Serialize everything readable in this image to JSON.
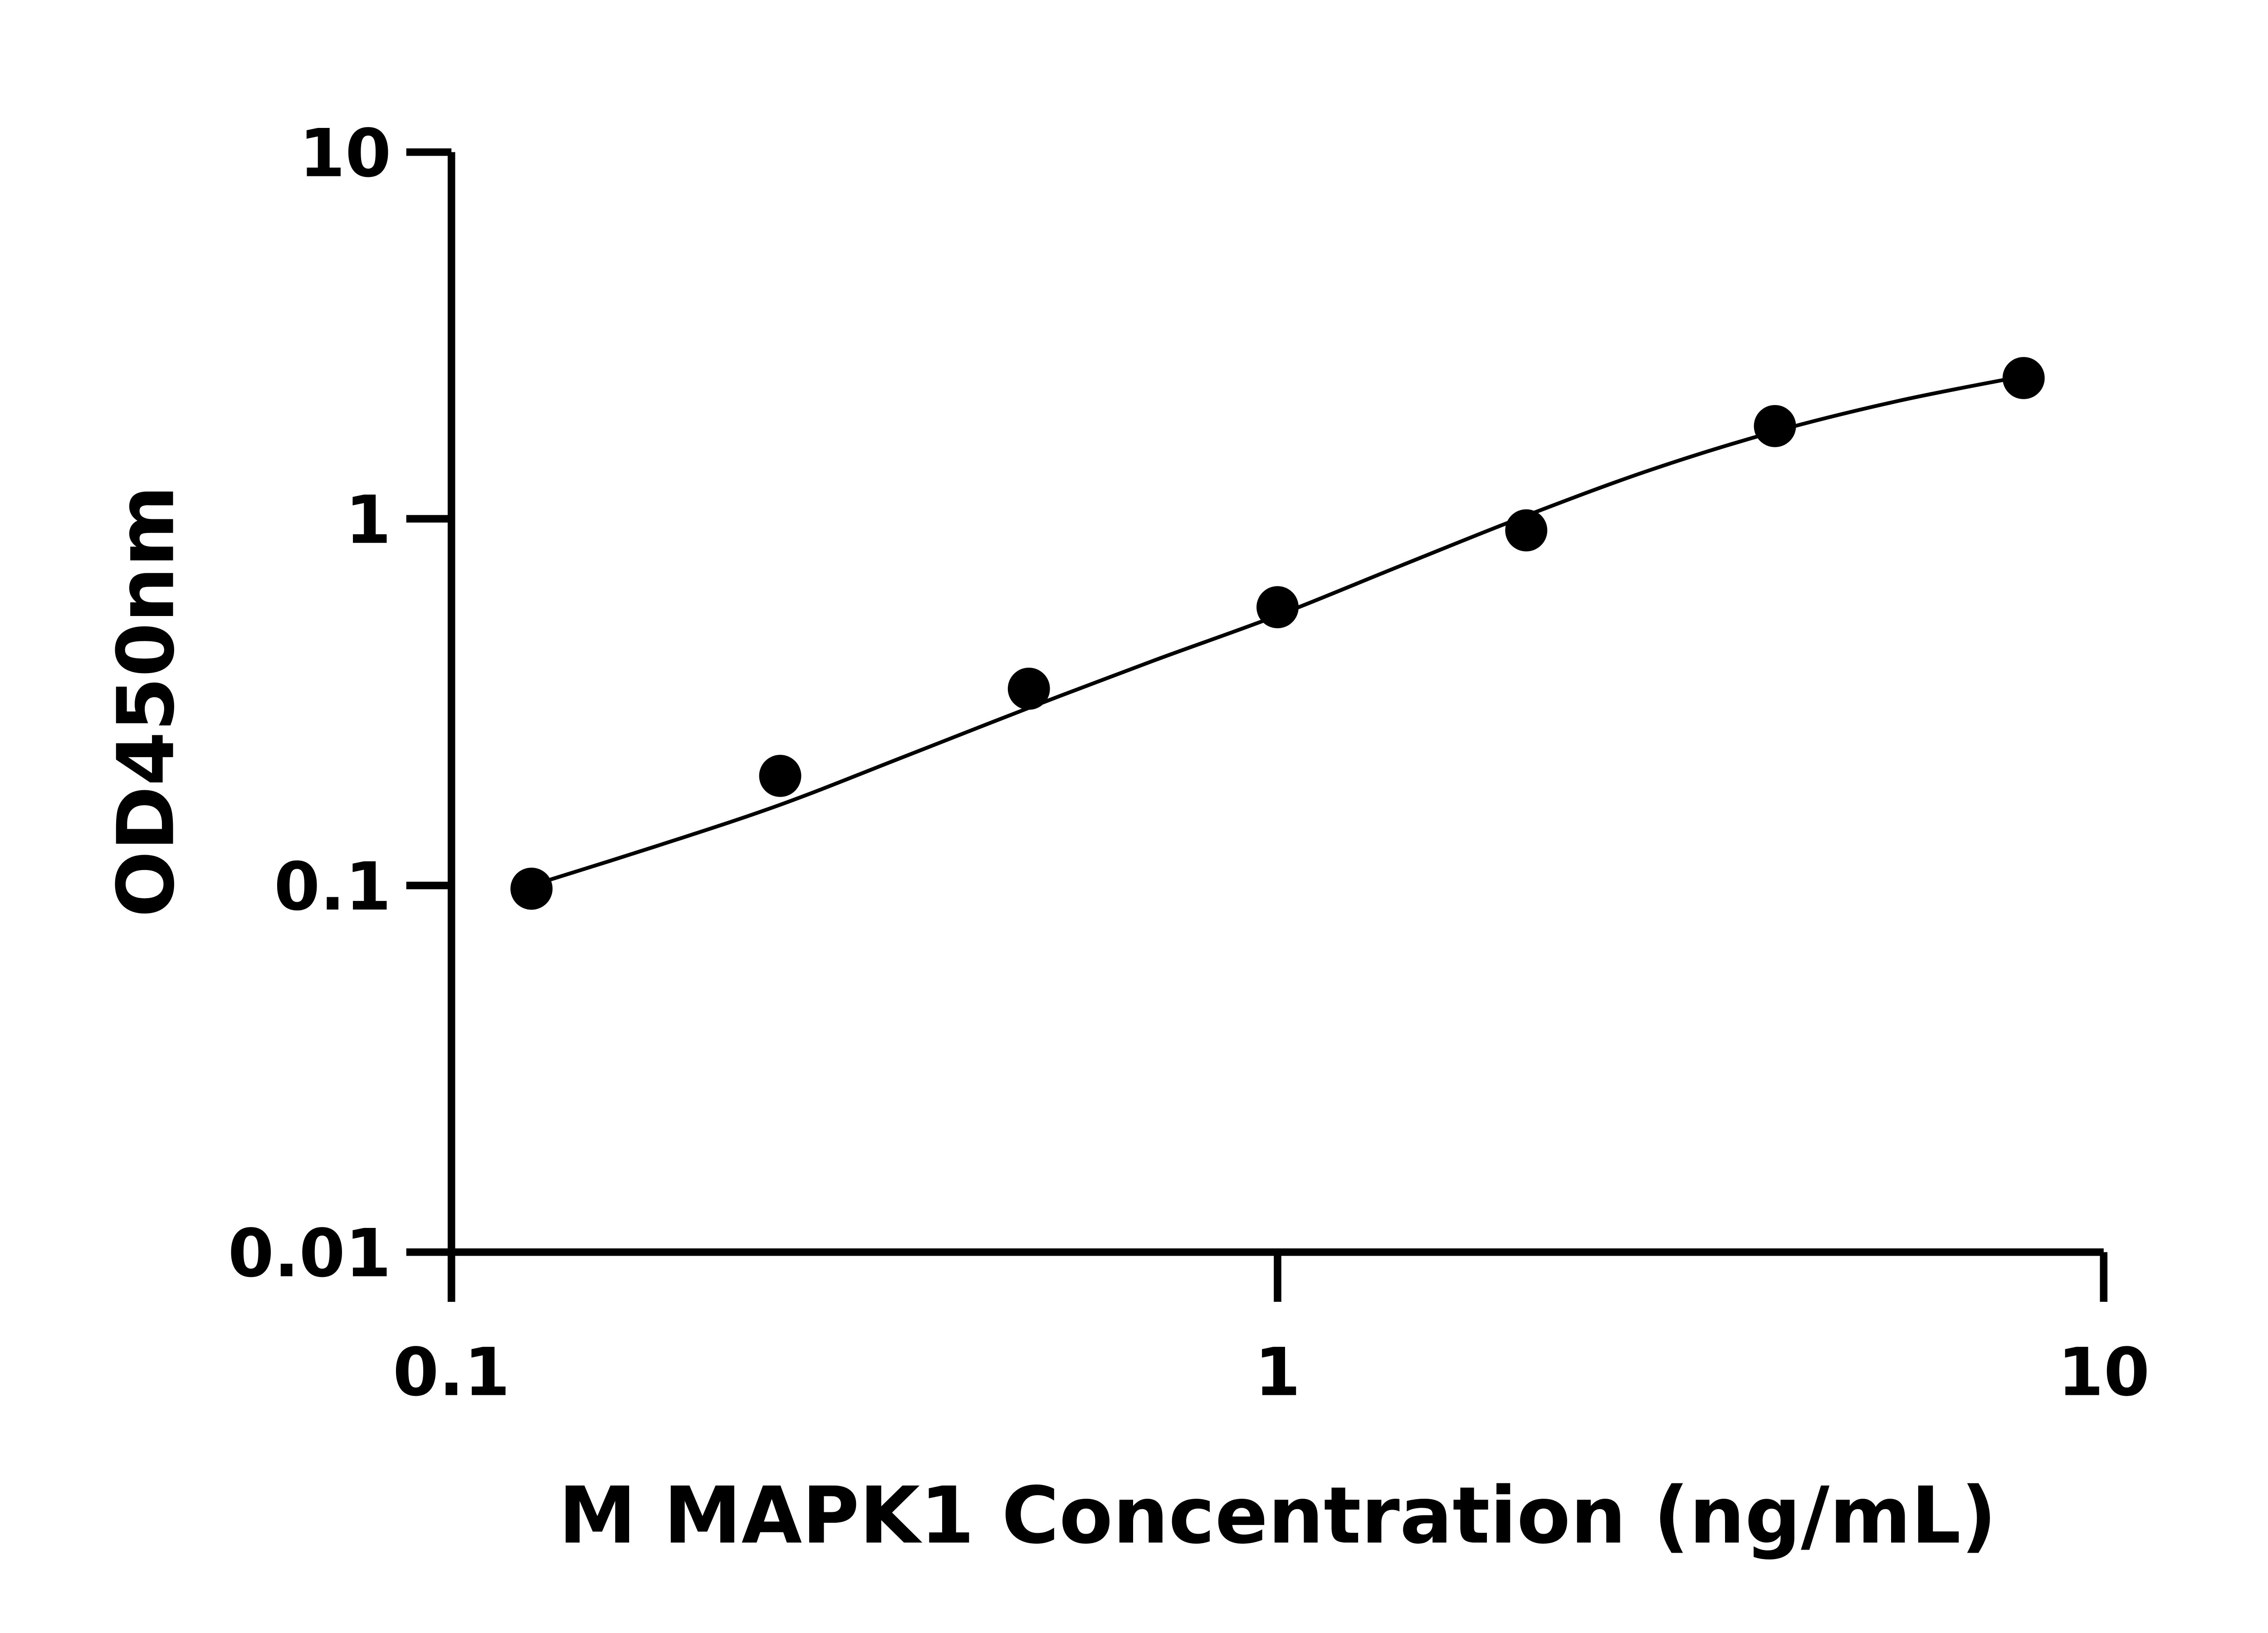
{
  "chart_data": {
    "type": "scatter",
    "title": "",
    "xlabel": "M MAPK1 Concentration (ng/mL)",
    "ylabel": "OD450nm",
    "xscale": "log",
    "yscale": "log",
    "xlim": [
      0.1,
      10
    ],
    "ylim": [
      0.01,
      10
    ],
    "x_ticks": [
      0.1,
      1,
      10
    ],
    "x_tick_labels": [
      "0.1",
      "1",
      "10"
    ],
    "y_ticks": [
      0.01,
      0.1,
      1,
      10
    ],
    "y_tick_labels": [
      "0.01",
      "0.1",
      "1",
      "10"
    ],
    "grid": false,
    "legend": "none",
    "marker_color": "#000000",
    "points": {
      "x": [
        0.125,
        0.25,
        0.5,
        1,
        2,
        4,
        8
      ],
      "y": [
        0.098,
        0.199,
        0.344,
        0.574,
        0.93,
        1.79,
        2.42
      ]
    },
    "fit_curve": {
      "x": [
        0.125,
        0.177,
        0.25,
        0.354,
        0.5,
        0.707,
        1,
        1.41,
        2,
        2.83,
        4,
        5.66,
        8
      ],
      "y": [
        0.1,
        0.128,
        0.166,
        0.225,
        0.305,
        0.41,
        0.545,
        0.745,
        1.02,
        1.36,
        1.73,
        2.1,
        2.45
      ]
    }
  }
}
